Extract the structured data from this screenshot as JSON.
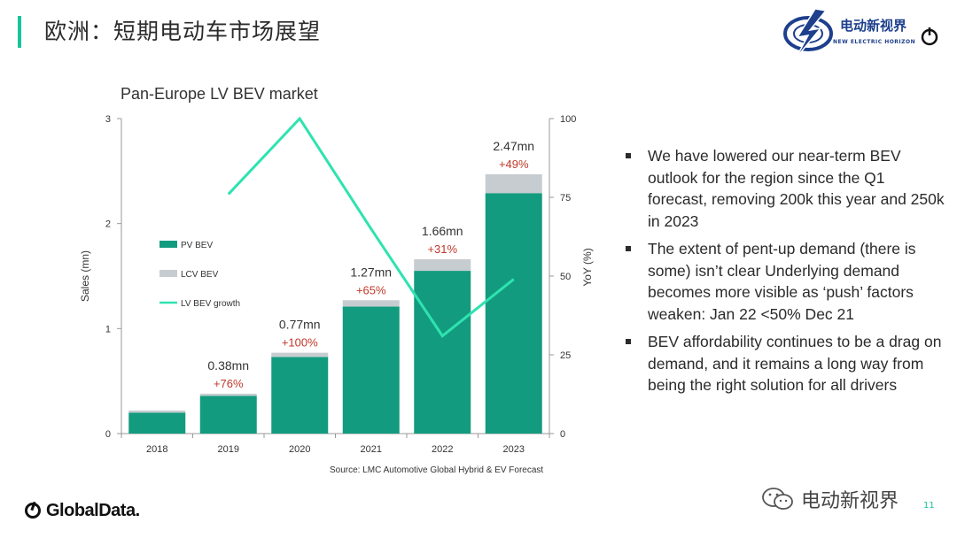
{
  "page": {
    "title": "欧洲：短期电动车市场展望",
    "page_number": "11",
    "source": "Source: LMC Automotive Global Hybrid & EV Forecast",
    "brand_logo": {
      "cn": "电动新视界",
      "en": "NEW ELECTRIC HORIZON",
      "icon": "lightning-globe-icon"
    },
    "footer_logo": {
      "text": "GlobalData.",
      "icon": "globaldata-icon"
    },
    "wechat_watermark": {
      "text": "电动新视界",
      "icon": "wechat-icon"
    },
    "accent_color": "#18c49a"
  },
  "bullets": [
    "We have lowered our near-term BEV outlook for the region since the Q1 forecast, removing 200k this year and 250k in 2023",
    "The extent of pent-up demand (there is some) isn’t clear Underlying demand becomes more visible as ‘push’ factors weaken: Jan 22 <50% Dec 21",
    "BEV affordability continues to be  a drag on demand, and it remains a long way from being the right solution for all drivers"
  ],
  "chart_data": {
    "type": "bar",
    "title": "Pan-Europe LV BEV market",
    "categories": [
      "2018",
      "2019",
      "2020",
      "2021",
      "2022",
      "2023"
    ],
    "series": [
      {
        "name": "PV BEV",
        "type": "bar",
        "stack": "sales",
        "axis": "left",
        "color": "#139b7f",
        "values": [
          0.2,
          0.36,
          0.73,
          1.21,
          1.55,
          2.29
        ]
      },
      {
        "name": "LCV BEV",
        "type": "bar",
        "stack": "sales",
        "axis": "left",
        "color": "#c7ccd0",
        "values": [
          0.02,
          0.02,
          0.04,
          0.06,
          0.11,
          0.18
        ]
      },
      {
        "name": "LV BEV growth",
        "type": "line",
        "axis": "right",
        "color": "#2ee3b0",
        "values": [
          null,
          76,
          100,
          65,
          31,
          49
        ]
      }
    ],
    "bar_labels": [
      {
        "category": "2019",
        "total": "0.38mn",
        "growth": "+76%"
      },
      {
        "category": "2020",
        "total": "0.77mn",
        "growth": "+100%"
      },
      {
        "category": "2021",
        "total": "1.27mn",
        "growth": "+65%"
      },
      {
        "category": "2022",
        "total": "1.66mn",
        "growth": "+31%"
      },
      {
        "category": "2023",
        "total": "2.47mn",
        "growth": "+49%"
      }
    ],
    "ylabel": "Sales (mn)",
    "ylim": [
      0,
      3
    ],
    "yticks": [
      "0",
      "1",
      "2",
      "3"
    ],
    "y2label": "YoY (%)",
    "y2lim": [
      0,
      100
    ],
    "y2ticks": [
      "0",
      "25",
      "50",
      "75",
      "100"
    ],
    "legend_position": "left-inside",
    "grid": false,
    "growth_label_color": "#c0392b"
  }
}
